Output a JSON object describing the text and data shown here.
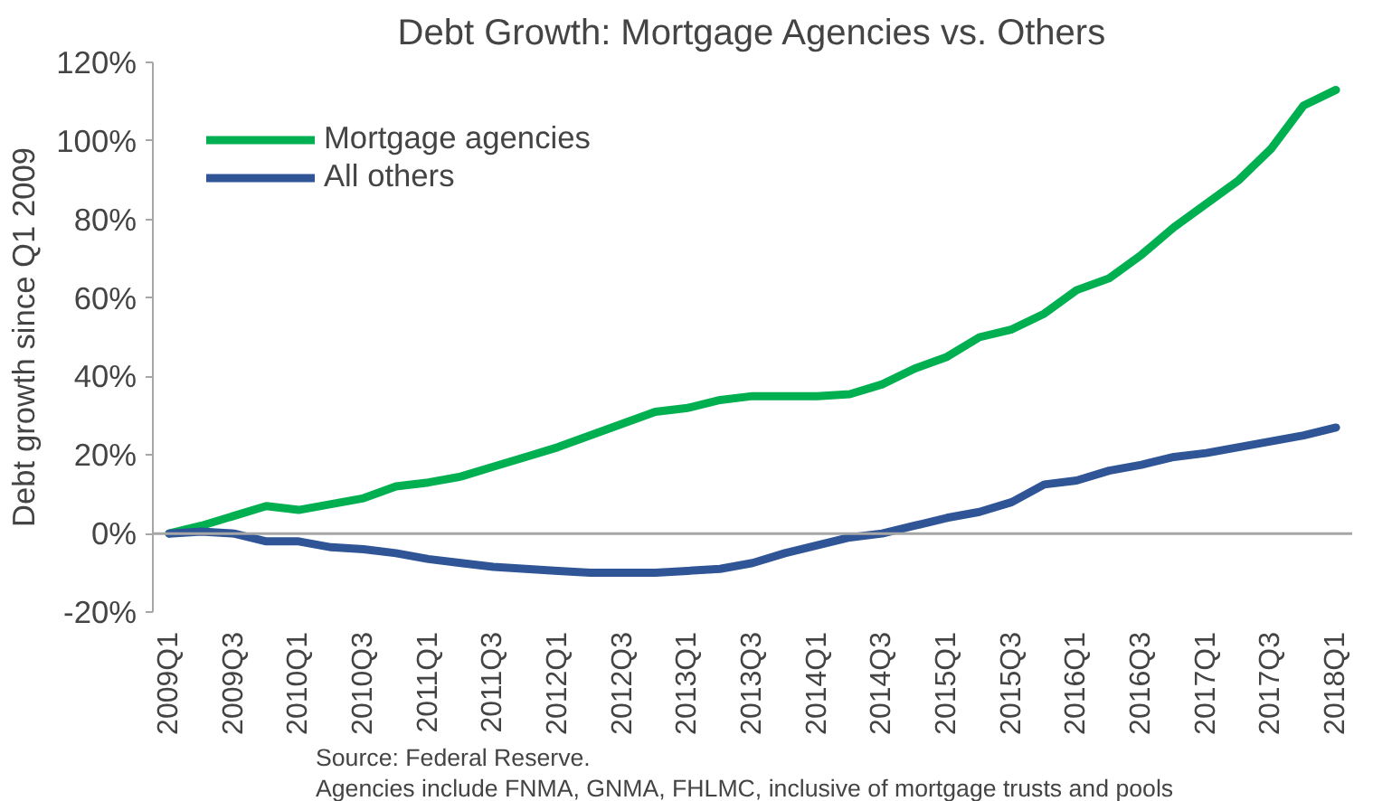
{
  "chart_data": {
    "type": "line",
    "title": "Debt Growth: Mortgage Agencies vs. Others",
    "ylabel": "Debt growth since Q1 2009",
    "categories": [
      "2009Q1",
      null,
      "2009Q3",
      null,
      "2010Q1",
      null,
      "2010Q3",
      null,
      "2011Q1",
      null,
      "2011Q3",
      null,
      "2012Q1",
      null,
      "2012Q3",
      null,
      "2013Q1",
      null,
      "2013Q3",
      null,
      "2014Q1",
      null,
      "2014Q3",
      null,
      "2015Q1",
      null,
      "2015Q3",
      null,
      "2016Q1",
      null,
      "2016Q3",
      null,
      "2017Q1",
      null,
      "2017Q3",
      null,
      "2018Q1"
    ],
    "series": [
      {
        "name": "Mortgage agencies",
        "color": "#00b050",
        "values": [
          0,
          2,
          4.5,
          7,
          6,
          7.5,
          9,
          12,
          13,
          14.5,
          17,
          19.5,
          22,
          25,
          28,
          31,
          32,
          34,
          35,
          35,
          35,
          35.5,
          38,
          42,
          45,
          50,
          52,
          56,
          62,
          65,
          71,
          78,
          84,
          90,
          98,
          109,
          113
        ]
      },
      {
        "name": "All others",
        "color": "#2f5597",
        "values": [
          0,
          0.5,
          0,
          -2,
          -2,
          -3.5,
          -4,
          -5,
          -6.5,
          -7.5,
          -8.5,
          -9,
          -9.5,
          -10,
          -10,
          -10,
          -9.5,
          -9,
          -7.5,
          -5,
          -3,
          -1,
          0,
          2,
          4,
          5.5,
          8,
          12.5,
          13.5,
          16,
          17.5,
          19.5,
          20.5,
          22,
          23.5,
          25,
          27
        ]
      }
    ],
    "ylim": [
      -20,
      120
    ],
    "yticks": [
      {
        "value": -20,
        "label": "-20%"
      },
      {
        "value": 0,
        "label": "0%"
      },
      {
        "value": 20,
        "label": "20%"
      },
      {
        "value": 40,
        "label": "40%"
      },
      {
        "value": 60,
        "label": "60%"
      },
      {
        "value": 80,
        "label": "80%"
      },
      {
        "value": 100,
        "label": "100%"
      },
      {
        "value": 120,
        "label": "120%"
      }
    ],
    "ref_lines": [
      {
        "axis": "y",
        "value": 0,
        "color": "#a6a6a6"
      }
    ],
    "grid": false,
    "legend": "top left",
    "marker": "none",
    "line_style": "solid",
    "annotations": [
      "Source: Federal Reserve.",
      "Agencies include FNMA, GNMA, FHLMC, inclusive of mortgage trusts and pools"
    ]
  }
}
